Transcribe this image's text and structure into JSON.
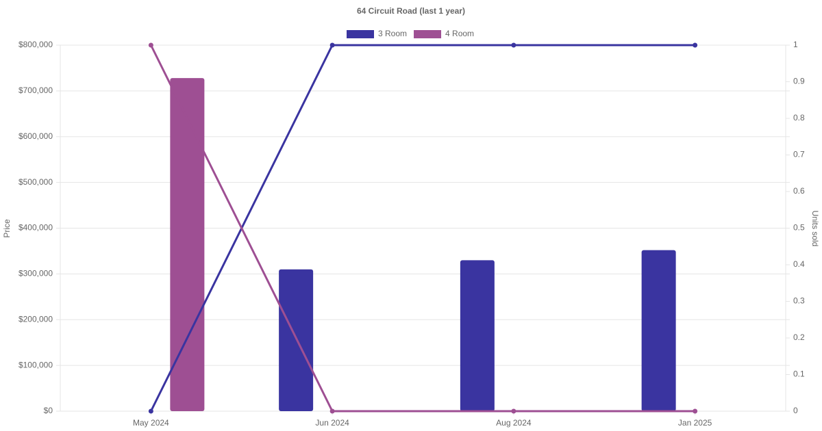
{
  "chart_data": {
    "type": "bar-line",
    "title": "64 Circuit Road (last 1 year)",
    "categories": [
      "May 2024",
      "Jun 2024",
      "Aug 2024",
      "Jan 2025"
    ],
    "y_label": "Price",
    "y2_label": "Units sold",
    "series": [
      {
        "name": "3 Room",
        "color": "#3a34a0",
        "values": [
          null,
          310000,
          330000,
          352000
        ],
        "units": [
          0,
          1,
          1,
          1
        ]
      },
      {
        "name": "4 Room",
        "color": "#9e4f93",
        "values": [
          728000,
          null,
          null,
          null
        ],
        "units": [
          1,
          0,
          0,
          0
        ]
      }
    ],
    "ylim": [
      0,
      800000
    ],
    "yticks": [
      {
        "value": 0,
        "label": "$0"
      },
      {
        "value": 100000,
        "label": "$100,000"
      },
      {
        "value": 200000,
        "label": "$200,000"
      },
      {
        "value": 300000,
        "label": "$300,000"
      },
      {
        "value": 400000,
        "label": "$400,000"
      },
      {
        "value": 500000,
        "label": "$500,000"
      },
      {
        "value": 600000,
        "label": "$600,000"
      },
      {
        "value": 700000,
        "label": "$700,000"
      },
      {
        "value": 800000,
        "label": "$800,000"
      }
    ],
    "y2lim": [
      0,
      1
    ],
    "y2ticks": [
      0,
      0.1,
      0.2,
      0.3,
      0.4,
      0.5,
      0.6,
      0.7,
      0.8,
      0.9,
      1
    ],
    "grid": true
  }
}
